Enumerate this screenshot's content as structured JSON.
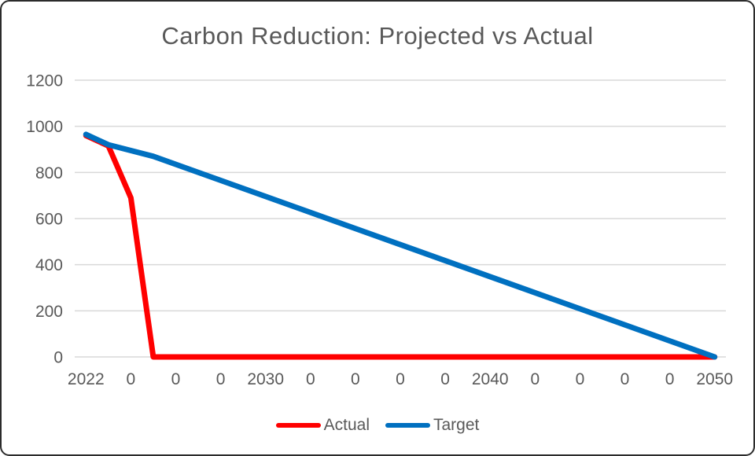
{
  "frame": {
    "border_color": "#2b2b2b",
    "background": "#ffffff"
  },
  "chart_data": {
    "type": "line",
    "title": "Carbon Reduction: Projected vs Actual",
    "text_color": "#595959",
    "grid_color": "#d9d9d9",
    "grid": true,
    "legend_position": "bottom",
    "x_axis": {
      "start_year": 2022,
      "end_year": 2050,
      "category_count": 29,
      "label_interval_years": 2,
      "visible_tick_labels": [
        "2022",
        "0",
        "0",
        "0",
        "2030",
        "0",
        "0",
        "0",
        "0",
        "2040",
        "0",
        "0",
        "0",
        "0",
        "2050"
      ]
    },
    "y_axis": {
      "min": 0,
      "max": 1200,
      "step": 200,
      "tick_labels": [
        "1200",
        "1000",
        "800",
        "600",
        "400",
        "200",
        "0"
      ]
    },
    "series": [
      {
        "name": "Actual",
        "color": "#ff0000",
        "points": [
          [
            2022,
            960
          ],
          [
            2023,
            915
          ],
          [
            2024,
            690
          ],
          [
            2025,
            0
          ],
          [
            2050,
            0
          ]
        ]
      },
      {
        "name": "Target",
        "color": "#0070c0",
        "points": [
          [
            2022,
            965
          ],
          [
            2023,
            920
          ],
          [
            2025,
            870
          ],
          [
            2050,
            0
          ]
        ]
      }
    ]
  }
}
